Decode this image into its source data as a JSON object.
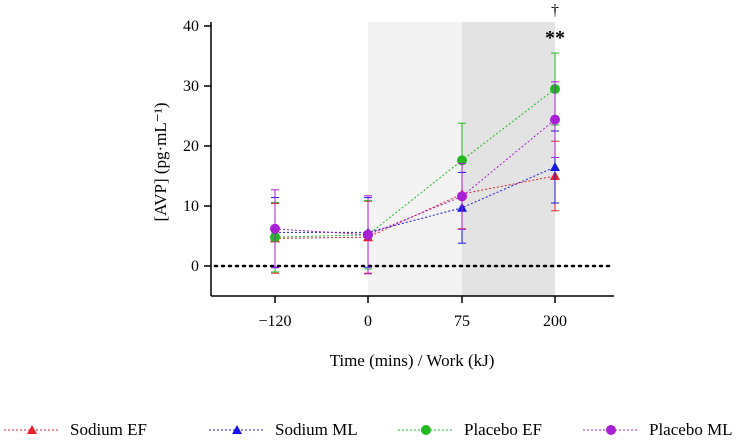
{
  "chart_data": {
    "type": "line",
    "title": "",
    "xlabel": "Time (mins) / Work (kJ)",
    "ylabel": "[AVP] (pg·mL⁻¹)",
    "categories": [
      "−120",
      "0",
      "75",
      "200"
    ],
    "yticks": [
      "0",
      "10",
      "20",
      "30",
      "40"
    ],
    "ylim": [
      -5,
      40
    ],
    "reference_line_y": 0,
    "shaded_regions": [
      {
        "from_category": "0",
        "to_category": "75",
        "color": "#f3f3f3"
      },
      {
        "from_category": "75",
        "to_category": "200",
        "color": "#e3e3e3"
      }
    ],
    "annotations": [
      {
        "category": "200",
        "text": "†"
      },
      {
        "category": "200",
        "text": "**"
      }
    ],
    "series": [
      {
        "name": "Sodium EF",
        "color": "#e8222b",
        "marker": "triangle",
        "values": [
          4.6,
          4.8,
          12.0,
          15.0
        ],
        "error": [
          5.8,
          6.0,
          5.8,
          5.8
        ]
      },
      {
        "name": "Sodium ML",
        "color": "#1616e6",
        "marker": "triangle",
        "values": [
          5.6,
          5.6,
          9.7,
          16.5
        ],
        "error": [
          5.8,
          5.8,
          5.9,
          6.0
        ]
      },
      {
        "name": "Placebo EF",
        "color": "#22b822",
        "marker": "circle",
        "values": [
          4.8,
          5.2,
          17.6,
          29.5
        ],
        "error": [
          5.8,
          5.7,
          6.2,
          6.0
        ]
      },
      {
        "name": "Placebo ML",
        "color": "#a81fd6",
        "marker": "circle",
        "values": [
          6.2,
          5.2,
          11.6,
          24.4
        ],
        "error": [
          6.5,
          6.5,
          5.5,
          6.3
        ]
      }
    ]
  }
}
